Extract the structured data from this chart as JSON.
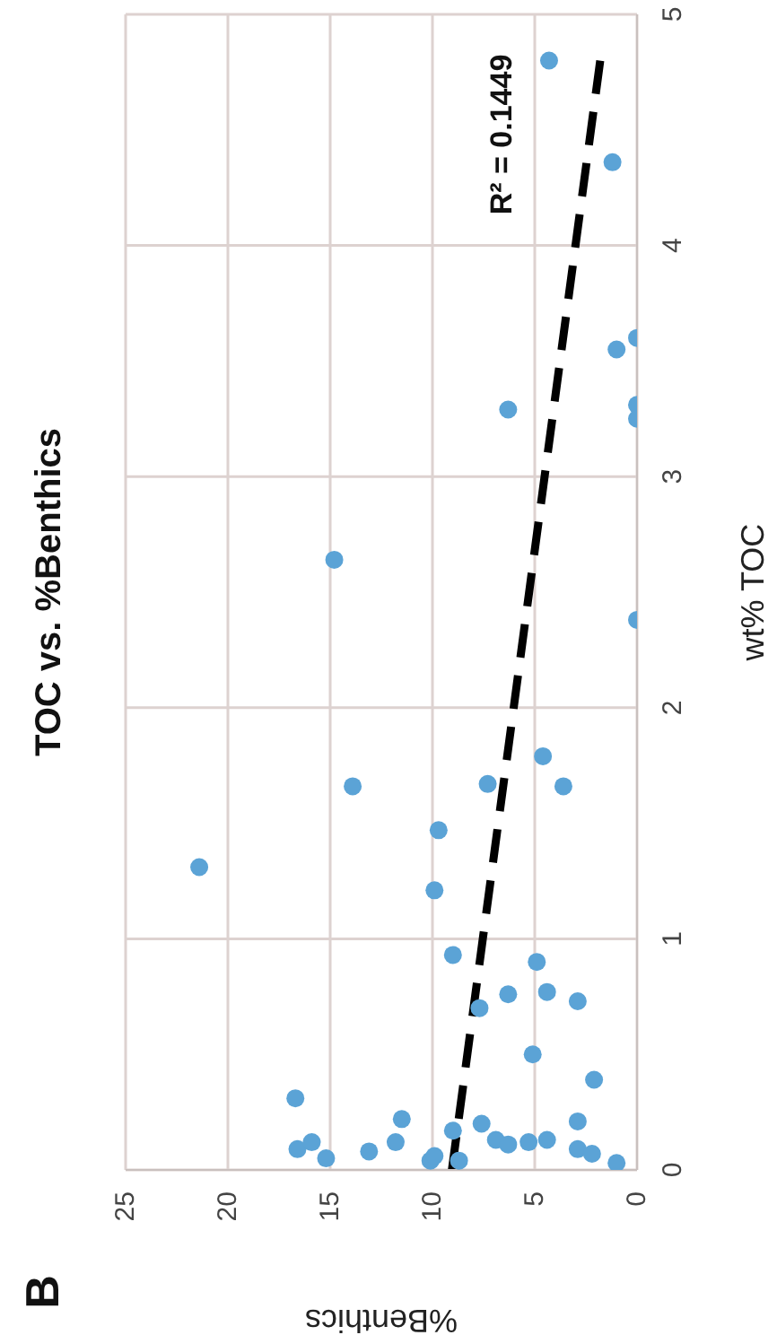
{
  "chart_data": {
    "type": "scatter",
    "title": "TOC vs. %Benthics",
    "xlabel": "%Benthics",
    "ylabel": "wt% TOC",
    "annotations": [
      "B",
      "R² = 0.1449"
    ],
    "xlim": [
      25,
      0
    ],
    "xticks": [
      25,
      20,
      15,
      10,
      5,
      0
    ],
    "ylim": [
      0,
      5
    ],
    "yticks": [
      0,
      1,
      2,
      3,
      4,
      5
    ],
    "grid": true,
    "series": [
      {
        "color": "#5ba3d6",
        "marker": "circle",
        "values": [
          4.8,
          4.36,
          3.6,
          3.55,
          3.29,
          3.31,
          3.25,
          2.64,
          2.38,
          1.79,
          1.66,
          1.67,
          1.66,
          1.47,
          1.31,
          1.21,
          0.93,
          0.9,
          0.76,
          0.77,
          0.73,
          0.7,
          0.5,
          0.39,
          0.31,
          0.22,
          0.17,
          0.2,
          0.21,
          0.12,
          0.09,
          0.12,
          0.05,
          0.08,
          0.04,
          0.06,
          0.04,
          0.13,
          0.11,
          0.12,
          0.13,
          0.09,
          0.07,
          0.03
        ],
        "x": [
          4.3,
          1.2,
          0,
          1.0,
          6.3,
          0,
          0,
          14.8,
          0,
          4.6,
          13.9,
          7.3,
          3.6,
          9.7,
          21.4,
          9.9,
          9.0,
          4.9,
          6.3,
          4.4,
          2.9,
          7.7,
          5.1,
          2.1,
          16.7,
          11.5,
          9.0,
          7.6,
          2.9,
          11.8,
          16.6,
          15.9,
          15.2,
          13.1,
          10.1,
          9.9,
          8.7,
          6.9,
          6.3,
          5.3,
          4.4,
          2.9,
          2.2,
          1.0
        ]
      },
      {
        "type": "line",
        "color": "#000000",
        "marker": "none",
        "line_style": "dashed",
        "x": [
          9.05,
          1.8
        ],
        "values": [
          0,
          4.8
        ]
      }
    ]
  }
}
